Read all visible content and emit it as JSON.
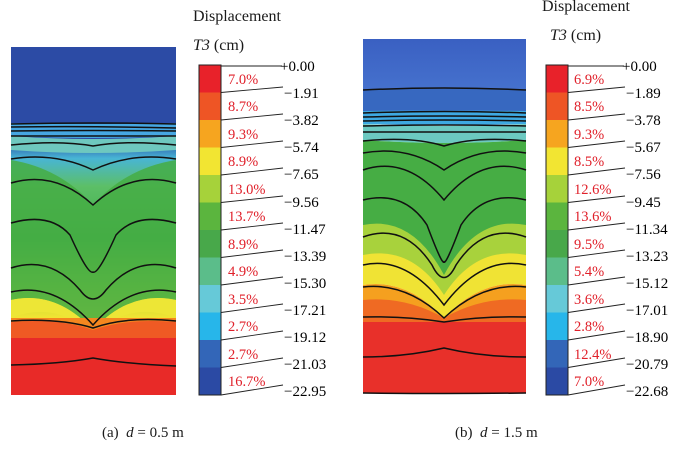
{
  "panels": [
    {
      "legend_title_line1": "Displacement",
      "legend_title_var": "T3",
      "legend_title_unit": " (cm)",
      "caption_label": "(a)",
      "caption_var": "d",
      "caption_rest": " = 0.5 m",
      "scale_values": [
        "+0.00",
        "−1.91",
        "−3.82",
        "−5.74",
        "−7.65",
        "−9.56",
        "−11.47",
        "−13.39",
        "−15.30",
        "−17.21",
        "−19.12",
        "−21.03",
        "−22.95"
      ],
      "percentages": [
        "7.0%",
        "8.7%",
        "9.3%",
        "8.9%",
        "13.0%",
        "13.7%",
        "8.9%",
        "4.9%",
        "3.5%",
        "2.7%",
        "2.7%",
        "16.7%"
      ],
      "band_colors": [
        "#e8222a",
        "#ee5525",
        "#f6a51f",
        "#f2e532",
        "#a6d23a",
        "#5bb53e",
        "#48a84a",
        "#5bbd8a",
        "#66c9d8",
        "#27b6ea",
        "#3366b8",
        "#2b4aa4"
      ]
    },
    {
      "legend_title_line1": "Displacement",
      "legend_title_var": "T3",
      "legend_title_unit": " (cm)",
      "caption_label": "(b)",
      "caption_var": "d",
      "caption_rest": " = 1.5 m",
      "scale_values": [
        "+0.00",
        "−1.89",
        "−3.78",
        "−5.67",
        "−7.56",
        "−9.45",
        "−11.34",
        "−13.23",
        "−15.12",
        "−17.01",
        "−18.90",
        "−20.79",
        "−22.68"
      ],
      "percentages": [
        "6.9%",
        "8.5%",
        "9.3%",
        "8.5%",
        "12.6%",
        "13.6%",
        "9.5%",
        "5.4%",
        "3.6%",
        "2.8%",
        "12.4%",
        "7.0%"
      ],
      "band_colors": [
        "#e8222a",
        "#ee5525",
        "#f6a51f",
        "#f2e532",
        "#a6d23a",
        "#5bb53e",
        "#48a84a",
        "#5bbd8a",
        "#66c9d8",
        "#27b6ea",
        "#3366b8",
        "#2b4aa4"
      ]
    }
  ]
}
